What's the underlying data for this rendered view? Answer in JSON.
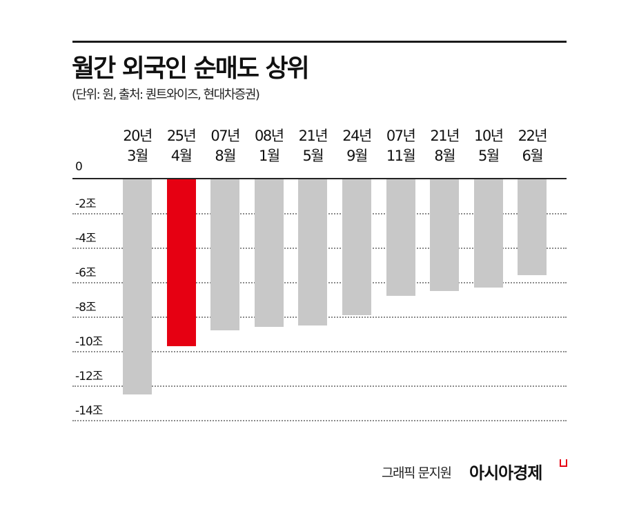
{
  "header": {
    "title": "월간 외국인 순매도 상위",
    "subtitle": "(단위: 원, 출처: 퀀트와이즈, 현대차증권)"
  },
  "footer": {
    "credit": "그래픽 문지원",
    "brand": "아시아경제"
  },
  "colors": {
    "highlight": "#e60012",
    "bar": "#c8c8c8",
    "grid": "#8a8a8a"
  },
  "axis": {
    "zero_label": "0",
    "y_ticks": [
      "-2조",
      "-4조",
      "-6조",
      "-8조",
      "-10조",
      "-12조",
      "-14조"
    ]
  },
  "categories": [
    {
      "year": "20년",
      "month": "3월"
    },
    {
      "year": "25년",
      "month": "4월"
    },
    {
      "year": "07년",
      "month": "8월"
    },
    {
      "year": "08년",
      "month": "1월"
    },
    {
      "year": "21년",
      "month": "5월"
    },
    {
      "year": "24년",
      "month": "9월"
    },
    {
      "year": "07년",
      "month": "11월"
    },
    {
      "year": "21년",
      "month": "8월"
    },
    {
      "year": "10년",
      "month": "5월"
    },
    {
      "year": "22년",
      "month": "6월"
    }
  ],
  "chart_data": {
    "type": "bar",
    "title": "월간 외국인 순매도 상위",
    "subtitle": "(단위: 원, 출처: 퀀트와이즈, 현대차증권)",
    "categories": [
      "20년 3월",
      "25년 4월",
      "07년 8월",
      "08년 1월",
      "21년 5월",
      "24년 9월",
      "07년 11월",
      "21년 8월",
      "10년 5월",
      "22년 6월"
    ],
    "values": [
      -12.5,
      -9.7,
      -8.8,
      -8.6,
      -8.5,
      -7.9,
      -6.8,
      -6.5,
      -6.3,
      -5.6
    ],
    "unit": "조 원",
    "highlight_index": 1,
    "xlabel": "",
    "ylabel": "",
    "ylim": [
      -14,
      0
    ],
    "y_ticks": [
      0,
      -2,
      -4,
      -6,
      -8,
      -10,
      -12,
      -14
    ],
    "grid": true,
    "legend": null,
    "x_axis_position": "top"
  }
}
